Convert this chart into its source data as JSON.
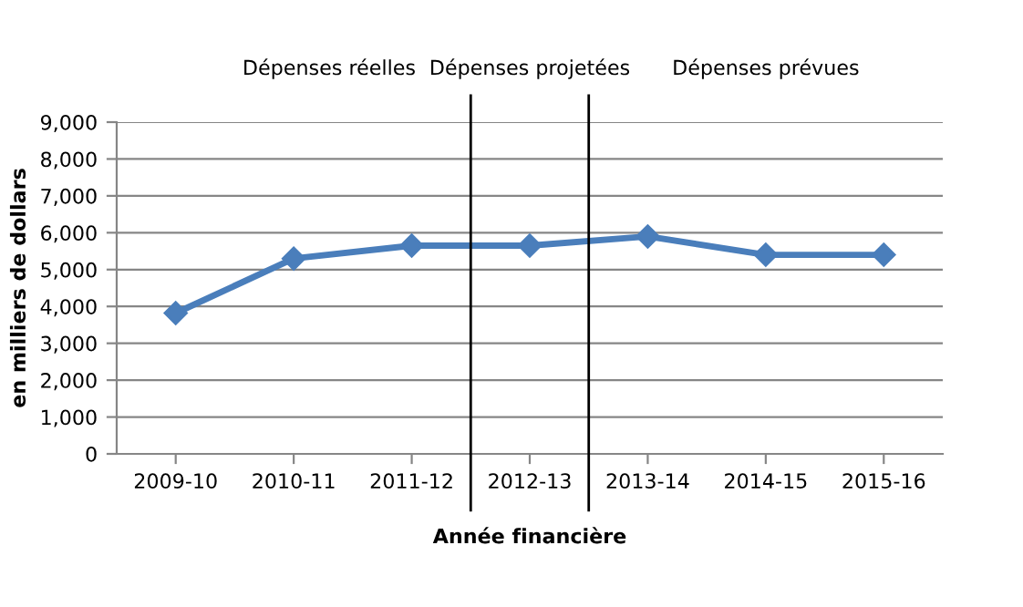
{
  "chart_data": {
    "type": "line",
    "categories": [
      "2009-10",
      "2010-11",
      "2011-12",
      "2012-13",
      "2013-14",
      "2014-15",
      "2015-16"
    ],
    "series": [
      {
        "color": "#4a7ebb",
        "values": [
          3820,
          5300,
          5650,
          5650,
          5900,
          5400,
          5400
        ]
      }
    ],
    "ylim": [
      0,
      9000
    ],
    "yticks": [
      {
        "value": 0,
        "label": "0"
      },
      {
        "value": 1000,
        "label": "1,000"
      },
      {
        "value": 2000,
        "label": "2,000"
      },
      {
        "value": 3000,
        "label": "3,000"
      },
      {
        "value": 4000,
        "label": "4,000"
      },
      {
        "value": 5000,
        "label": "5,000"
      },
      {
        "value": 6000,
        "label": "6,000"
      },
      {
        "value": 7000,
        "label": "7,000"
      },
      {
        "value": 8000,
        "label": "8,000"
      },
      {
        "value": 9000,
        "label": "9,000"
      }
    ],
    "ylabel": "en milliers de dollars",
    "xlabel": "Année financière",
    "annotations": [
      "Dépenses réelles",
      "Dépenses projetées",
      "Dépenses prévues"
    ],
    "grid": "y",
    "marker": "diamond",
    "line_style": "solid",
    "legend": false
  }
}
